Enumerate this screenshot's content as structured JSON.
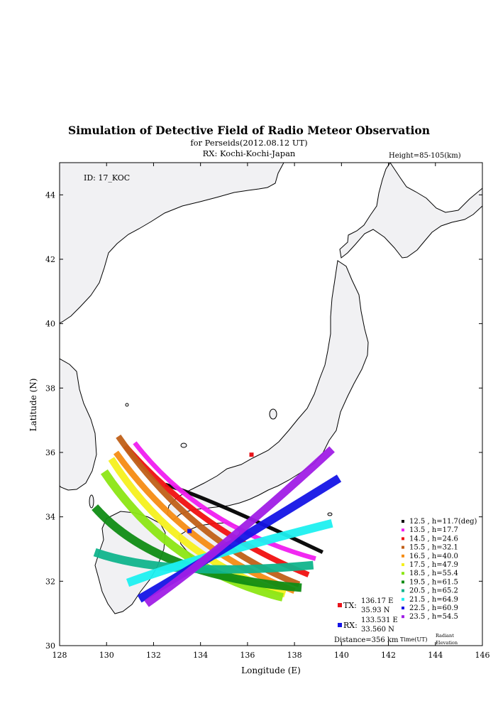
{
  "header": {
    "title": "Simulation of Detective Field of Radio Meteor Observation",
    "subtitle": "for Perseids(2012.08.12 UT)",
    "rx_line": "RX: Kochi-Kochi-Japan",
    "height": "Height=85-105(km)",
    "id_label": "ID: 17_KOC"
  },
  "colors": {
    "land": "#f1f1f3",
    "coast": "#000000",
    "tx_marker": "#e8141b",
    "rx_marker": "#1414e6"
  },
  "stations": {
    "tx_label": "TX:",
    "tx_lon": "136.17 E",
    "tx_lat": "35.93 N",
    "rx_label": "RX:",
    "rx_lon": "133.531 E",
    "rx_lat": "33.560 N",
    "distance": "Distance=356 km",
    "time_label": "Time(UT)",
    "radiant_label": "Radiant",
    "elevation_label": "Elevation"
  },
  "chart_data": {
    "type": "scatter",
    "xlabel": "Longitude (E)",
    "ylabel": "Latitude (N)",
    "xlim": [
      128,
      146
    ],
    "ylim": [
      30,
      45
    ],
    "xticks": [
      128,
      130,
      132,
      134,
      136,
      138,
      140,
      142,
      144,
      146
    ],
    "yticks": [
      30,
      32,
      34,
      36,
      38,
      40,
      42,
      44
    ],
    "tx": {
      "lon": 136.17,
      "lat": 35.93
    },
    "rx": {
      "lon": 133.531,
      "lat": 33.56
    },
    "series": [
      {
        "name": "12.5 ,  h=11.7(deg)",
        "color": "#000000",
        "start": [
          132.5,
          35.0
        ],
        "mid": [
          135.0,
          34.3
        ],
        "end": [
          139.2,
          32.9
        ],
        "width": 0.16
      },
      {
        "name": "13.5 ,  h=17.7",
        "color": "#f01ef0",
        "start": [
          131.2,
          36.3
        ],
        "mid": [
          134.5,
          34.1
        ],
        "end": [
          138.9,
          32.7
        ],
        "width": 0.2
      },
      {
        "name": "14.5 ,  h=24.6",
        "color": "#f01010",
        "start": [
          130.8,
          36.2
        ],
        "mid": [
          134.3,
          33.9
        ],
        "end": [
          138.6,
          32.2
        ],
        "width": 0.24
      },
      {
        "name": "15.5 ,  h=32.1",
        "color": "#c06018",
        "start": [
          130.5,
          36.5
        ],
        "mid": [
          134.0,
          33.7
        ],
        "end": [
          138.2,
          31.9
        ],
        "width": 0.26
      },
      {
        "name": "16.5 ,  h=40.0",
        "color": "#f58c14",
        "start": [
          130.4,
          36.0
        ],
        "mid": [
          133.8,
          33.4
        ],
        "end": [
          138.0,
          31.7
        ],
        "width": 0.26
      },
      {
        "name": "17.5 ,  h=47.9",
        "color": "#f5f01e",
        "start": [
          130.2,
          35.8
        ],
        "mid": [
          133.4,
          33.2
        ],
        "end": [
          137.6,
          31.6
        ],
        "width": 0.3
      },
      {
        "name": "18.5 ,  h=55.4",
        "color": "#8ce614",
        "start": [
          129.9,
          35.4
        ],
        "mid": [
          133.2,
          32.9
        ],
        "end": [
          137.5,
          31.5
        ],
        "width": 0.36
      },
      {
        "name": "19.5 ,  h=61.5",
        "color": "#108c14",
        "start": [
          129.5,
          34.3
        ],
        "mid": [
          133.0,
          32.6
        ],
        "end": [
          138.3,
          31.8
        ],
        "width": 0.36
      },
      {
        "name": "20.5 ,  h=65.2",
        "color": "#10b48c",
        "start": [
          129.5,
          32.9
        ],
        "mid": [
          133.4,
          32.4
        ],
        "end": [
          138.8,
          32.5
        ],
        "width": 0.36
      },
      {
        "name": "21.5 ,  h=64.9",
        "color": "#1ef0f0",
        "start": [
          130.9,
          31.95
        ],
        "mid": [
          134.5,
          32.8
        ],
        "end": [
          139.6,
          33.8
        ],
        "width": 0.36
      },
      {
        "name": "22.5 ,  h=60.9",
        "color": "#1414e6",
        "start": [
          131.4,
          31.45
        ],
        "mid": [
          135.2,
          33.1
        ],
        "end": [
          139.9,
          35.2
        ],
        "width": 0.36
      },
      {
        "name": "23.5 ,  h=54.5",
        "color": "#a01ee6",
        "start": [
          131.7,
          31.3
        ],
        "mid": [
          135.4,
          33.4
        ],
        "end": [
          139.6,
          36.1
        ],
        "width": 0.34
      }
    ]
  }
}
